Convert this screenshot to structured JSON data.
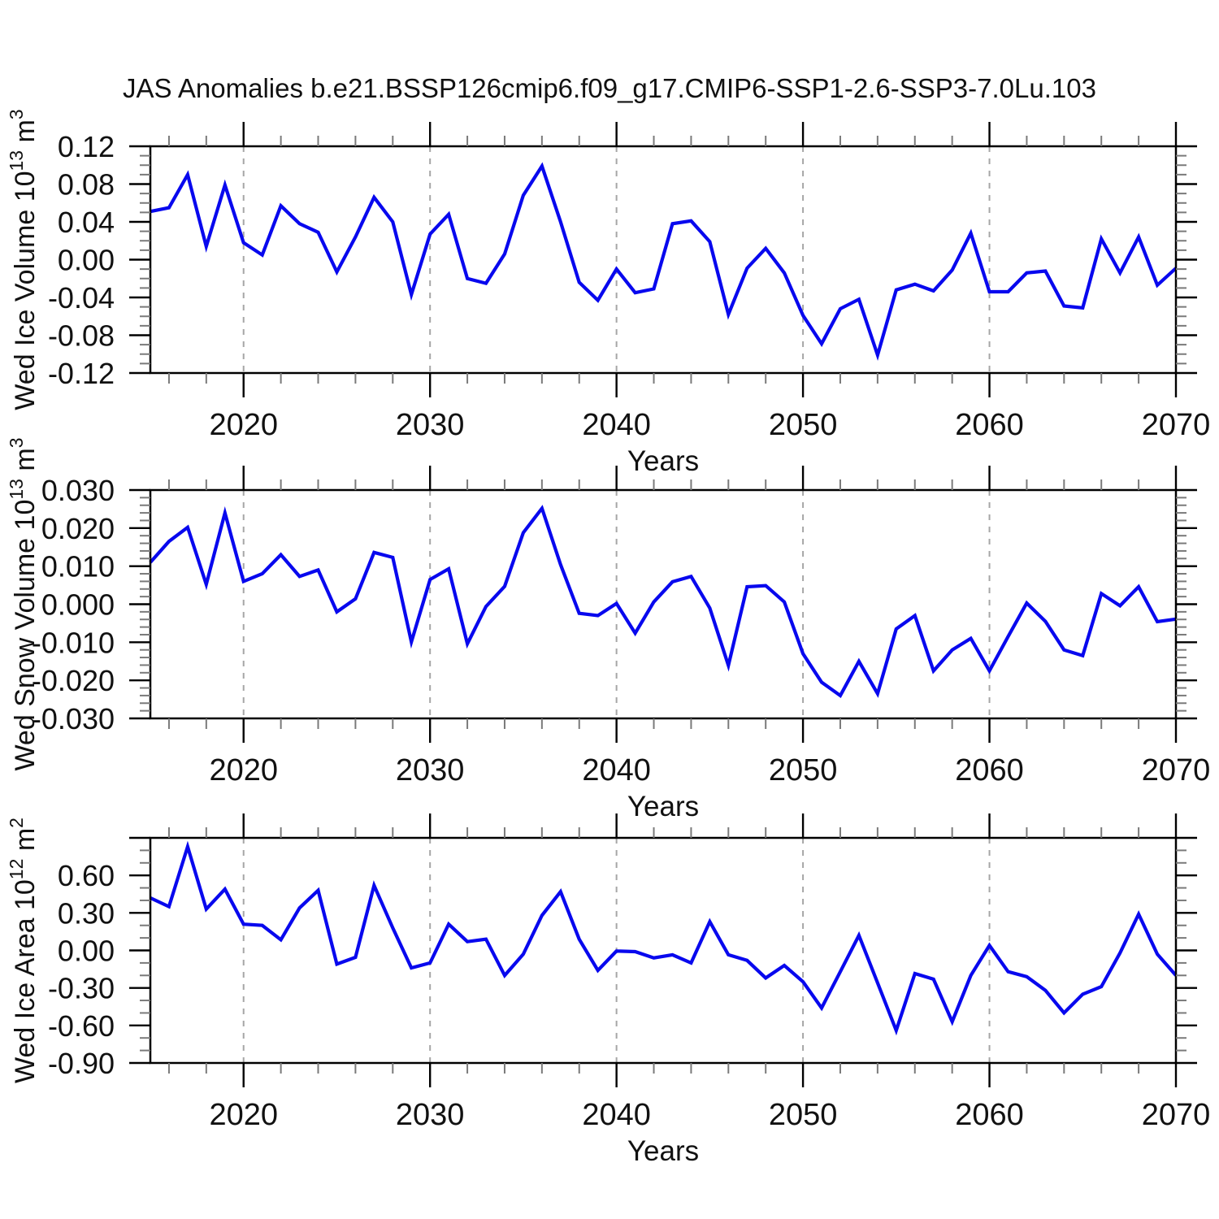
{
  "title": "JAS Anomalies b.e21.BSSP126cmip6.f09_g17.CMIP6-SSP1-2.6-SSP3-7.0Lu.103",
  "accent_colors": {
    "line": "#0808ee",
    "axis": "#000000",
    "minor_tick": "#7a7a7a",
    "gridline": "#a6a6a6"
  },
  "chart_data": [
    {
      "id": "ice-volume",
      "type": "line",
      "ylabel": "Wed Ice Volume 10^13 m^3",
      "ylabel_segments": [
        {
          "t": "Wed Ice Volume 10"
        },
        {
          "t": "13",
          "sup": true
        },
        {
          "t": " m"
        },
        {
          "t": "3",
          "sup": true
        }
      ],
      "xlabel": "Years",
      "xlim": [
        2015,
        2070
      ],
      "ylim": [
        -0.12,
        0.12
      ],
      "ytick_step": 0.04,
      "yminor_step": 0.01,
      "ytick_labels": [
        "0.12",
        "0.08",
        "0.04",
        "0.00",
        "-0.04",
        "-0.08",
        "-0.12"
      ],
      "xtick_years": [
        2020,
        2030,
        2040,
        2050,
        2060,
        2070
      ],
      "xtick_labels": [
        "2020",
        "2030",
        "2040",
        "2050",
        "2060",
        "2070"
      ],
      "xminor_step": 2,
      "xgrid_years": [
        2020,
        2030,
        2040,
        2050,
        2060
      ],
      "legend": "none",
      "grid": "vertical-dashed",
      "years": [
        2015,
        2016,
        2017,
        2018,
        2019,
        2020,
        2021,
        2022,
        2023,
        2024,
        2025,
        2026,
        2027,
        2028,
        2029,
        2030,
        2031,
        2032,
        2033,
        2034,
        2035,
        2036,
        2037,
        2038,
        2039,
        2040,
        2041,
        2042,
        2043,
        2044,
        2045,
        2046,
        2047,
        2048,
        2049,
        2050,
        2051,
        2052,
        2053,
        2054,
        2055,
        2056,
        2057,
        2058,
        2059,
        2060,
        2061,
        2062,
        2063,
        2064,
        2065,
        2066,
        2067,
        2068,
        2069,
        2070
      ],
      "values": [
        0.051,
        0.055,
        0.09,
        0.014,
        0.079,
        0.018,
        0.005,
        0.057,
        0.038,
        0.029,
        -0.013,
        0.024,
        0.066,
        0.04,
        -0.037,
        0.027,
        0.048,
        -0.02,
        -0.025,
        0.006,
        0.068,
        0.099,
        0.04,
        -0.024,
        -0.043,
        -0.01,
        -0.035,
        -0.031,
        0.038,
        0.041,
        0.019,
        -0.058,
        -0.009,
        0.012,
        -0.014,
        -0.059,
        -0.089,
        -0.052,
        -0.042,
        -0.101,
        -0.032,
        -0.026,
        -0.033,
        -0.011,
        0.028,
        -0.034,
        -0.034,
        -0.014,
        -0.012,
        -0.049,
        -0.051,
        0.022,
        -0.014,
        0.024,
        -0.027,
        -0.009
      ]
    },
    {
      "id": "snow-volume",
      "type": "line",
      "ylabel": "Wed Snow Volume 10^13 m^3",
      "ylabel_segments": [
        {
          "t": "Wed Snow Volume 10"
        },
        {
          "t": "13",
          "sup": true
        },
        {
          "t": " m"
        },
        {
          "t": "3",
          "sup": true
        }
      ],
      "xlabel": "Years",
      "xlim": [
        2015,
        2070
      ],
      "ylim": [
        -0.03,
        0.03
      ],
      "ytick_step": 0.01,
      "yminor_step": 0.002,
      "ytick_labels": [
        "0.030",
        "0.020",
        "0.010",
        "0.000",
        "-0.010",
        "-0.020",
        "-0.030"
      ],
      "xtick_years": [
        2020,
        2030,
        2040,
        2050,
        2060,
        2070
      ],
      "xtick_labels": [
        "2020",
        "2030",
        "2040",
        "2050",
        "2060",
        "2070"
      ],
      "xminor_step": 2,
      "xgrid_years": [
        2020,
        2030,
        2040,
        2050,
        2060
      ],
      "legend": "none",
      "grid": "vertical-dashed",
      "years": [
        2015,
        2016,
        2017,
        2018,
        2019,
        2020,
        2021,
        2022,
        2023,
        2024,
        2025,
        2026,
        2027,
        2028,
        2029,
        2030,
        2031,
        2032,
        2033,
        2034,
        2035,
        2036,
        2037,
        2038,
        2039,
        2040,
        2041,
        2042,
        2043,
        2044,
        2045,
        2046,
        2047,
        2048,
        2049,
        2050,
        2051,
        2052,
        2053,
        2054,
        2055,
        2056,
        2057,
        2058,
        2059,
        2060,
        2061,
        2062,
        2063,
        2064,
        2065,
        2066,
        2067,
        2068,
        2069,
        2070
      ],
      "values": [
        0.011,
        0.0165,
        0.0202,
        0.0052,
        0.024,
        0.006,
        0.008,
        0.013,
        0.0073,
        0.009,
        -0.002,
        0.0014,
        0.0136,
        0.0123,
        -0.0099,
        0.0065,
        0.0093,
        -0.0104,
        -0.0006,
        0.0047,
        0.0188,
        0.0252,
        0.0104,
        -0.0024,
        -0.003,
        0.0002,
        -0.0076,
        0.0006,
        0.0059,
        0.0073,
        -0.001,
        -0.0161,
        0.0046,
        0.0049,
        0.0006,
        -0.013,
        -0.0205,
        -0.024,
        -0.015,
        -0.0235,
        -0.0065,
        -0.003,
        -0.0175,
        -0.012,
        -0.009,
        -0.0175,
        -0.0085,
        0.0003,
        -0.0045,
        -0.012,
        -0.0135,
        0.0028,
        -0.0004,
        0.0046,
        -0.0046,
        -0.0039
      ]
    },
    {
      "id": "ice-area",
      "type": "line",
      "ylabel": "Wed Ice Area 10^12 m^2",
      "ylabel_segments": [
        {
          "t": "Wed Ice Area 10"
        },
        {
          "t": "12",
          "sup": true
        },
        {
          "t": " m"
        },
        {
          "t": "2",
          "sup": true
        }
      ],
      "xlabel": "Years",
      "xlim": [
        2015,
        2070
      ],
      "ylim": [
        -0.9,
        0.9
      ],
      "ytick_step": 0.3,
      "yminor_step": 0.1,
      "ytick_labels": [
        "0.60",
        "0.30",
        "0.00",
        "-0.30",
        "-0.60",
        "-0.90"
      ],
      "ytick_values": [
        0.6,
        0.3,
        0.0,
        -0.3,
        -0.6,
        -0.9
      ],
      "xtick_years": [
        2020,
        2030,
        2040,
        2050,
        2060,
        2070
      ],
      "xtick_labels": [
        "2020",
        "2030",
        "2040",
        "2050",
        "2060",
        "2070"
      ],
      "xminor_step": 2,
      "xgrid_years": [
        2020,
        2030,
        2040,
        2050,
        2060
      ],
      "legend": "none",
      "grid": "vertical-dashed",
      "years": [
        2015,
        2016,
        2017,
        2018,
        2019,
        2020,
        2021,
        2022,
        2023,
        2024,
        2025,
        2026,
        2027,
        2028,
        2029,
        2030,
        2031,
        2032,
        2033,
        2034,
        2035,
        2036,
        2037,
        2038,
        2039,
        2040,
        2041,
        2042,
        2043,
        2044,
        2045,
        2046,
        2047,
        2048,
        2049,
        2050,
        2051,
        2052,
        2053,
        2054,
        2055,
        2056,
        2057,
        2058,
        2059,
        2060,
        2061,
        2062,
        2063,
        2064,
        2065,
        2066,
        2067,
        2068,
        2069,
        2070
      ],
      "values": [
        0.42,
        0.35,
        0.83,
        0.33,
        0.49,
        0.21,
        0.2,
        0.085,
        0.34,
        0.48,
        -0.11,
        -0.055,
        0.52,
        0.18,
        -0.14,
        -0.1,
        0.21,
        0.07,
        0.09,
        -0.2,
        -0.03,
        0.28,
        0.47,
        0.09,
        -0.16,
        -0.005,
        -0.01,
        -0.06,
        -0.035,
        -0.1,
        0.23,
        -0.035,
        -0.08,
        -0.22,
        -0.12,
        -0.25,
        -0.46,
        -0.17,
        0.12,
        -0.26,
        -0.64,
        -0.185,
        -0.23,
        -0.57,
        -0.2,
        0.04,
        -0.17,
        -0.21,
        -0.32,
        -0.5,
        -0.35,
        -0.29,
        -0.02,
        0.29,
        -0.03,
        -0.2
      ]
    }
  ]
}
